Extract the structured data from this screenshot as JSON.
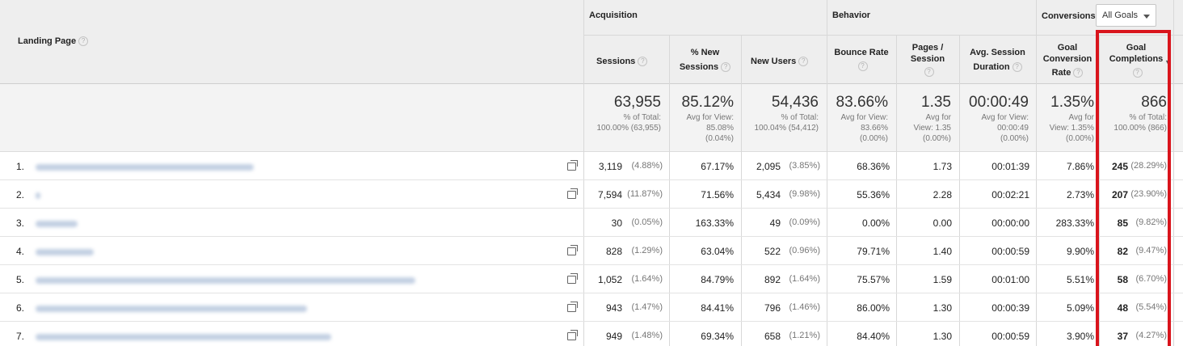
{
  "header": {
    "landing_page": "Landing Page",
    "groups": {
      "acquisition": "Acquisition",
      "behavior": "Behavior",
      "conversions": "Conversions"
    },
    "goal_select": "All Goals",
    "columns": {
      "sessions": "Sessions",
      "new_sessions_1": "% New",
      "new_sessions_2": "Sessions",
      "new_users": "New Users",
      "bounce_rate": "Bounce Rate",
      "pages_session_1": "Pages /",
      "pages_session_2": "Session",
      "avg_duration_1": "Avg. Session",
      "avg_duration_2": "Duration",
      "goal_conv_1": "Goal",
      "goal_conv_2": "Conversion",
      "goal_conv_3": "Rate",
      "goal_comp_1": "Goal",
      "goal_comp_2": "Completions"
    },
    "help": "?"
  },
  "totals": {
    "sessions": {
      "value": "63,955",
      "l1": "% of Total:",
      "l2": "100.00% (63,955)"
    },
    "new_sessions": {
      "value": "85.12%",
      "l1": "Avg for View:",
      "l2": "85.08%",
      "l3": "(0.04%)"
    },
    "new_users": {
      "value": "54,436",
      "l1": "% of Total:",
      "l2": "100.04% (54,412)"
    },
    "bounce_rate": {
      "value": "83.66%",
      "l1": "Avg for View:",
      "l2": "83.66%",
      "l3": "(0.00%)"
    },
    "pages_session": {
      "value": "1.35",
      "l1": "Avg for",
      "l2": "View: 1.35",
      "l3": "(0.00%)"
    },
    "avg_duration": {
      "value": "00:00:49",
      "l1": "Avg for View:",
      "l2": "00:00:49",
      "l3": "(0.00%)"
    },
    "goal_conv": {
      "value": "1.35%",
      "l1": "Avg for",
      "l2": "View: 1.35%",
      "l3": "(0.00%)"
    },
    "goal_comp": {
      "value": "866",
      "l1": "% of Total:",
      "l2": "100.00% (866)"
    }
  },
  "rows": [
    {
      "n": "1.",
      "sessions": "3,119",
      "sessions_pct": "(4.88%)",
      "new_sessions": "67.17%",
      "new_users": "2,095",
      "new_users_pct": "(3.85%)",
      "bounce": "68.36%",
      "pages": "1.73",
      "duration": "00:01:39",
      "conv": "7.86%",
      "comp": "245",
      "comp_pct": "(28.29%)"
    },
    {
      "n": "2.",
      "sessions": "7,594",
      "sessions_pct": "(11.87%)",
      "new_sessions": "71.56%",
      "new_users": "5,434",
      "new_users_pct": "(9.98%)",
      "bounce": "55.36%",
      "pages": "2.28",
      "duration": "00:02:21",
      "conv": "2.73%",
      "comp": "207",
      "comp_pct": "(23.90%)"
    },
    {
      "n": "3.",
      "sessions": "30",
      "sessions_pct": "(0.05%)",
      "new_sessions": "163.33%",
      "new_users": "49",
      "new_users_pct": "(0.09%)",
      "bounce": "0.00%",
      "pages": "0.00",
      "duration": "00:00:00",
      "conv": "283.33%",
      "comp": "85",
      "comp_pct": "(9.82%)"
    },
    {
      "n": "4.",
      "sessions": "828",
      "sessions_pct": "(1.29%)",
      "new_sessions": "63.04%",
      "new_users": "522",
      "new_users_pct": "(0.96%)",
      "bounce": "79.71%",
      "pages": "1.40",
      "duration": "00:00:59",
      "conv": "9.90%",
      "comp": "82",
      "comp_pct": "(9.47%)"
    },
    {
      "n": "5.",
      "sessions": "1,052",
      "sessions_pct": "(1.64%)",
      "new_sessions": "84.79%",
      "new_users": "892",
      "new_users_pct": "(1.64%)",
      "bounce": "75.57%",
      "pages": "1.59",
      "duration": "00:01:00",
      "conv": "5.51%",
      "comp": "58",
      "comp_pct": "(6.70%)"
    },
    {
      "n": "6.",
      "sessions": "943",
      "sessions_pct": "(1.47%)",
      "new_sessions": "84.41%",
      "new_users": "796",
      "new_users_pct": "(1.46%)",
      "bounce": "86.00%",
      "pages": "1.30",
      "duration": "00:00:39",
      "conv": "5.09%",
      "comp": "48",
      "comp_pct": "(5.54%)"
    },
    {
      "n": "7.",
      "sessions": "949",
      "sessions_pct": "(1.48%)",
      "new_sessions": "69.34%",
      "new_users": "658",
      "new_users_pct": "(1.21%)",
      "bounce": "84.40%",
      "pages": "1.30",
      "duration": "00:00:59",
      "conv": "3.90%",
      "comp": "37",
      "comp_pct": "(4.27%)"
    }
  ],
  "colors": {
    "highlight": "#d9141c",
    "header_bg": "#eeeeee"
  },
  "icons": [
    "help-icon",
    "open-external-icon",
    "caret-down-icon",
    "sort-desc-icon"
  ]
}
